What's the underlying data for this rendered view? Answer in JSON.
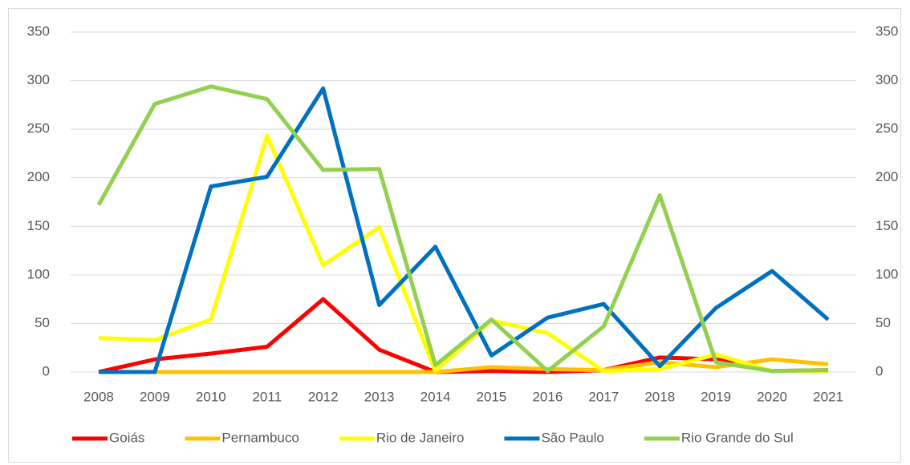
{
  "chart_data": {
    "type": "line",
    "categories": [
      "2008",
      "2009",
      "2010",
      "2011",
      "2012",
      "2013",
      "2014",
      "2015",
      "2016",
      "2017",
      "2018",
      "2019",
      "2020",
      "2021"
    ],
    "series": [
      {
        "name": "Goiás",
        "color": "#ff0000",
        "values": [
          0,
          13,
          19,
          26,
          75,
          23,
          0,
          1,
          0,
          2,
          15,
          13,
          1,
          2
        ]
      },
      {
        "name": "Pernambuco",
        "color": "#ffc000",
        "values": [
          0,
          0,
          0,
          0,
          0,
          0,
          0,
          5,
          3,
          2,
          10,
          5,
          13,
          8
        ]
      },
      {
        "name": "Rio de Janeiro",
        "color": "#ffff00",
        "values": [
          35,
          33,
          54,
          243,
          110,
          149,
          1,
          53,
          40,
          1,
          3,
          18,
          1,
          1
        ]
      },
      {
        "name": "São Paulo",
        "color": "#0070c0",
        "values": [
          0,
          0,
          191,
          201,
          292,
          69,
          129,
          17,
          56,
          70,
          6,
          66,
          104,
          54
        ]
      },
      {
        "name": "Rio Grande do Sul",
        "color": "#92d050",
        "values": [
          172,
          276,
          294,
          281,
          208,
          209,
          7,
          54,
          1,
          47,
          182,
          10,
          1,
          2
        ]
      }
    ],
    "ylim": [
      0,
      350
    ],
    "yticks": [
      0,
      50,
      100,
      150,
      200,
      250,
      300,
      350
    ],
    "y2lim": [
      0,
      350
    ],
    "y2ticks": [
      0,
      50,
      100,
      150,
      200,
      250,
      300,
      350
    ],
    "grid": true,
    "legend": "bottom"
  }
}
